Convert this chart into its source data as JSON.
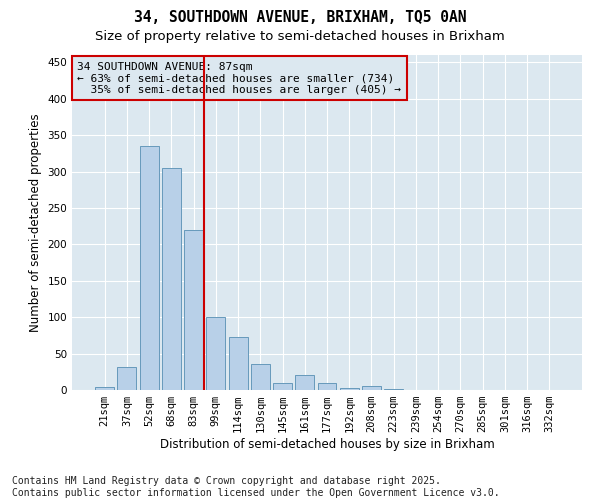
{
  "title_line1": "34, SOUTHDOWN AVENUE, BRIXHAM, TQ5 0AN",
  "title_line2": "Size of property relative to semi-detached houses in Brixham",
  "xlabel": "Distribution of semi-detached houses by size in Brixham",
  "ylabel": "Number of semi-detached properties",
  "categories": [
    "21sqm",
    "37sqm",
    "52sqm",
    "68sqm",
    "83sqm",
    "99sqm",
    "114sqm",
    "130sqm",
    "145sqm",
    "161sqm",
    "177sqm",
    "192sqm",
    "208sqm",
    "223sqm",
    "239sqm",
    "254sqm",
    "270sqm",
    "285sqm",
    "301sqm",
    "316sqm",
    "332sqm"
  ],
  "values": [
    4,
    32,
    335,
    305,
    220,
    100,
    73,
    36,
    10,
    20,
    9,
    3,
    6,
    1,
    0,
    0,
    0,
    0,
    0,
    0,
    0
  ],
  "bar_color": "#b8d0e8",
  "bar_edge_color": "#6699bb",
  "vline_color": "#cc0000",
  "vline_x": 4.45,
  "annotation_text_line1": "34 SOUTHDOWN AVENUE: 87sqm",
  "annotation_text_line2": "← 63% of semi-detached houses are smaller (734)",
  "annotation_text_line3": "  35% of semi-detached houses are larger (405) →",
  "box_edge_color": "#cc0000",
  "ylim": [
    0,
    460
  ],
  "yticks": [
    0,
    50,
    100,
    150,
    200,
    250,
    300,
    350,
    400,
    450
  ],
  "fig_bg_color": "#ffffff",
  "plot_bg_color": "#dce8f0",
  "grid_color": "#ffffff",
  "footer_text": "Contains HM Land Registry data © Crown copyright and database right 2025.\nContains public sector information licensed under the Open Government Licence v3.0.",
  "title_fontsize": 10.5,
  "subtitle_fontsize": 9.5,
  "annotation_fontsize": 8,
  "footer_fontsize": 7,
  "tick_label_fontsize": 7.5,
  "ylabel_fontsize": 8.5,
  "xlabel_fontsize": 8.5
}
